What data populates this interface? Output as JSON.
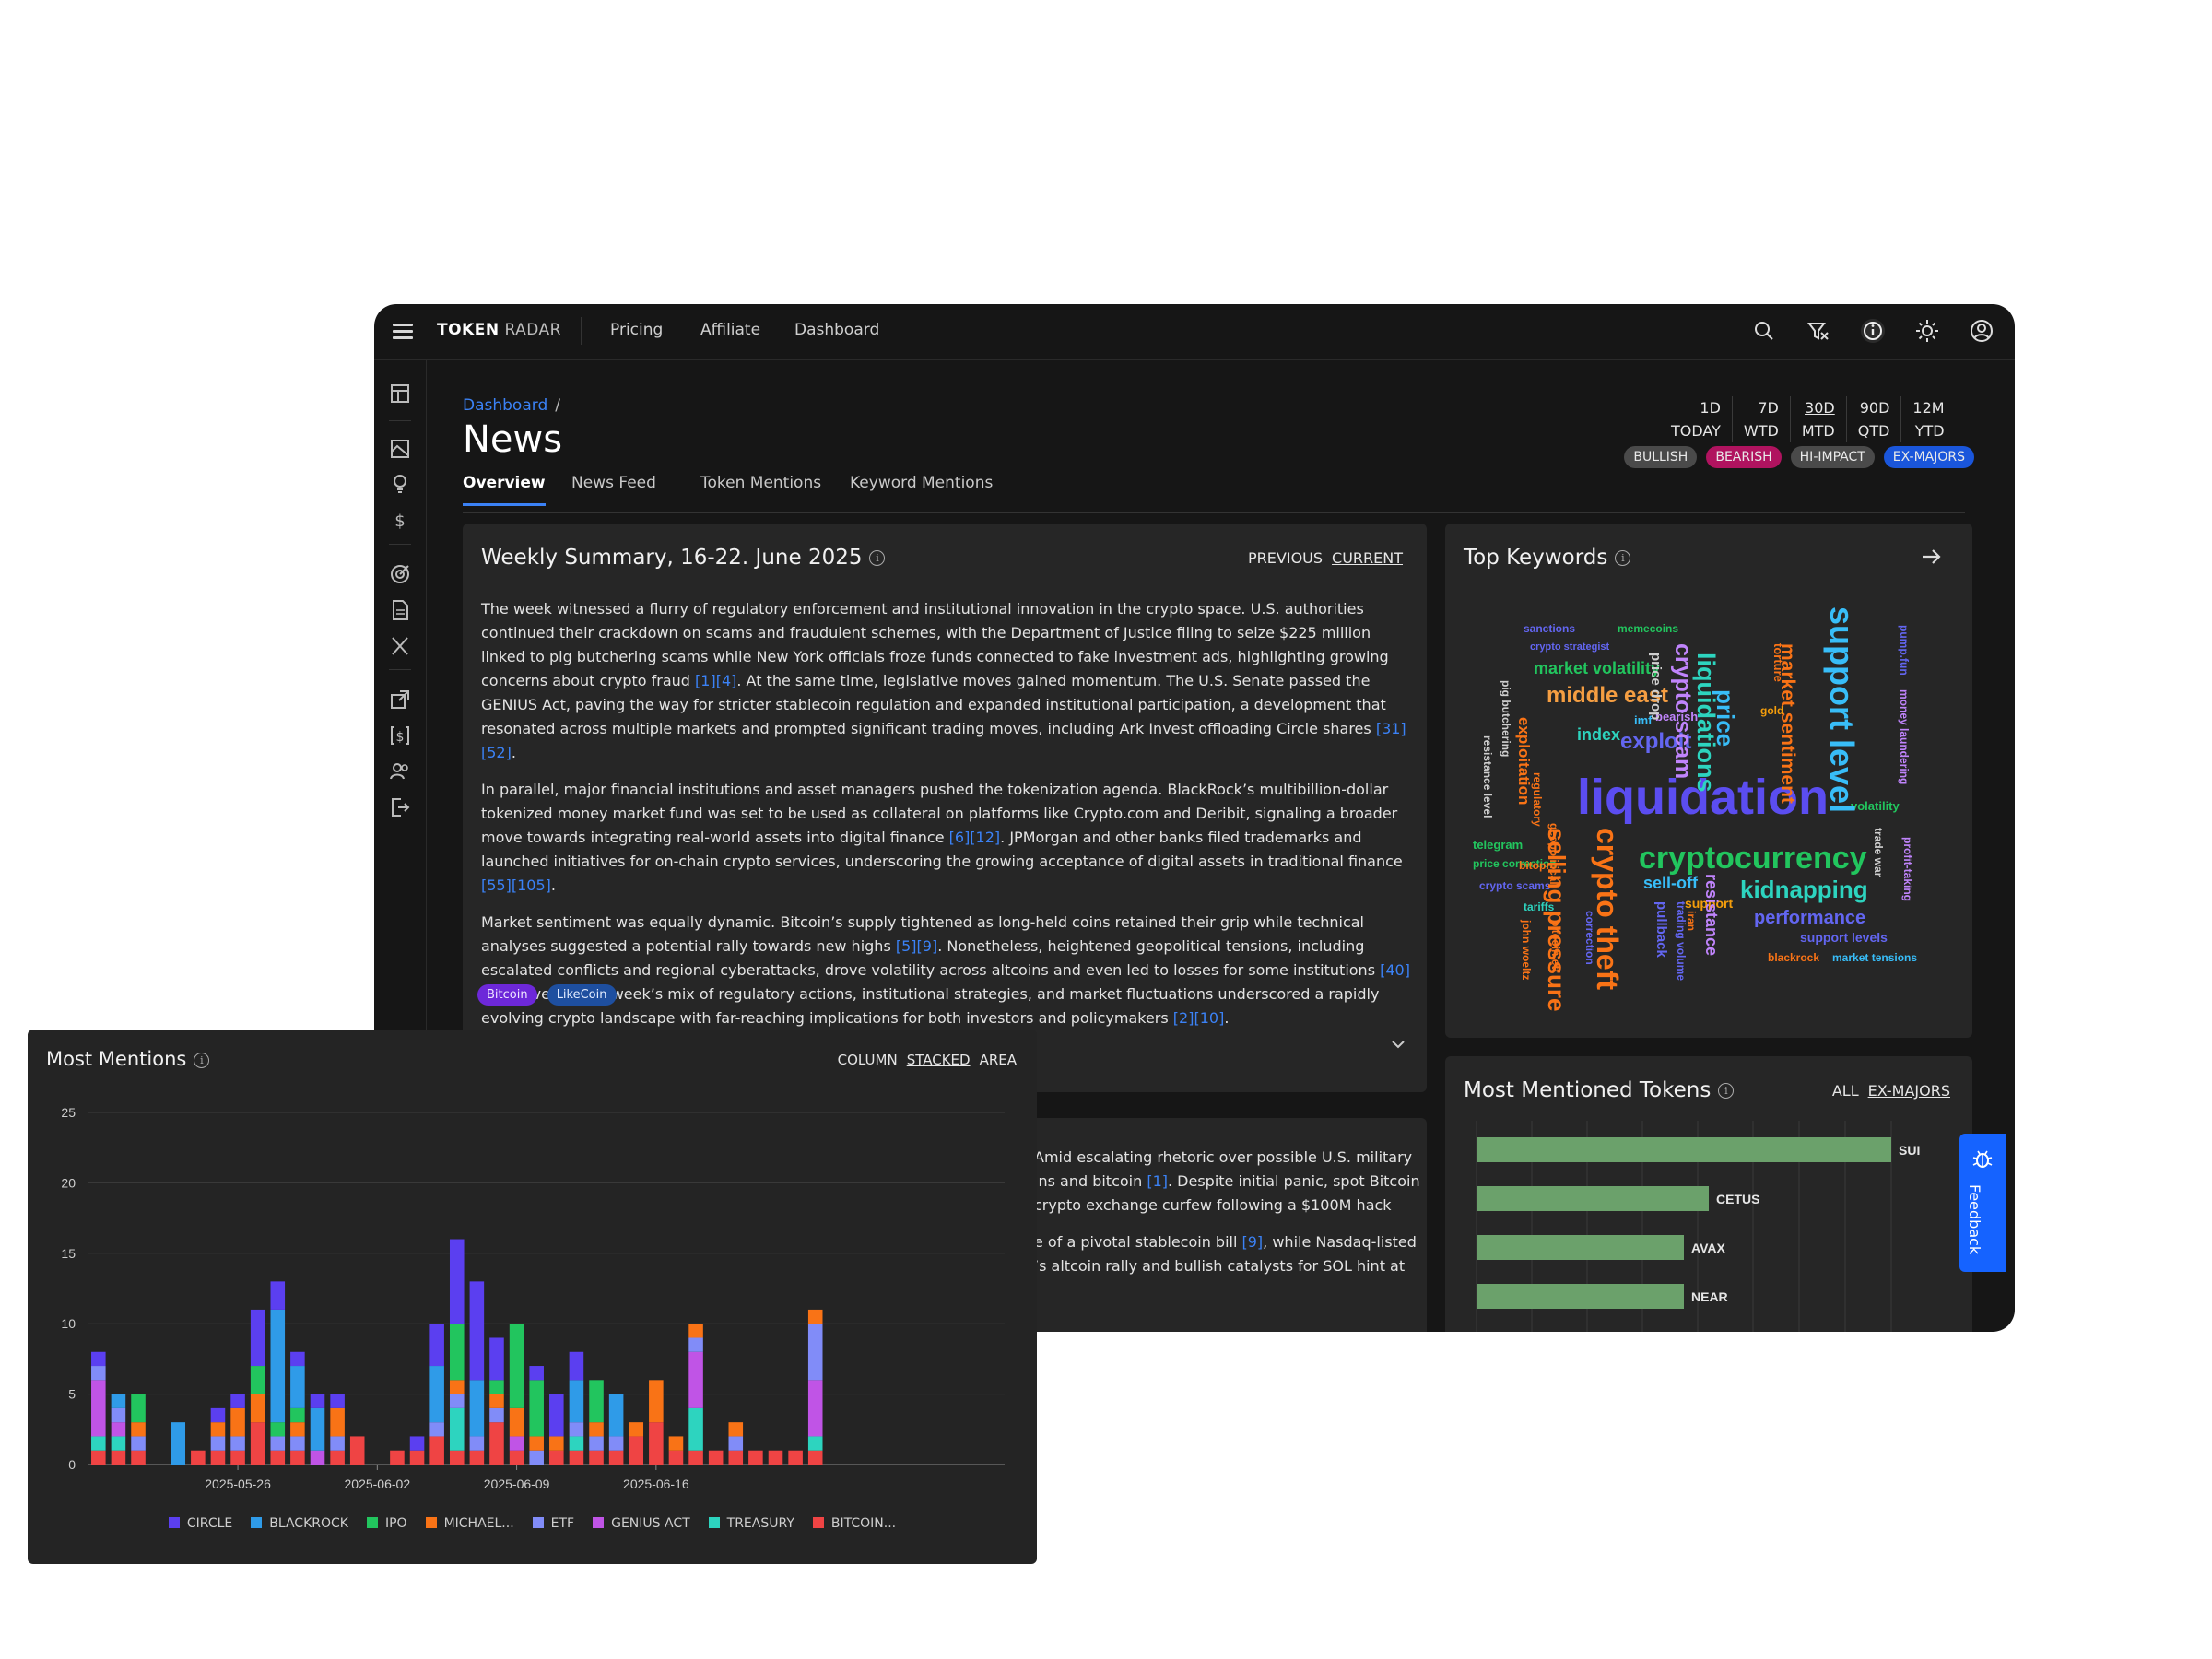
{
  "topbar": {
    "brand_bold": "TOKEN",
    "brand_light": "RADAR",
    "nav": [
      "Pricing",
      "Affiliate",
      "Dashboard"
    ]
  },
  "breadcrumb": {
    "parent": "Dashboard",
    "sep": "/"
  },
  "page_title": "News",
  "periods": [
    {
      "top": "1D",
      "bottom": "TODAY",
      "selected": false
    },
    {
      "top": "7D",
      "bottom": "WTD",
      "selected": false
    },
    {
      "top": "30D",
      "bottom": "MTD",
      "selected": true
    },
    {
      "top": "90D",
      "bottom": "QTD",
      "selected": false
    },
    {
      "top": "12M",
      "bottom": "YTD",
      "selected": false
    }
  ],
  "filter_chips": [
    {
      "label": "BULLISH",
      "color": "#4a4a4a"
    },
    {
      "label": "BEARISH",
      "color": "#b0135f"
    },
    {
      "label": "HI-IMPACT",
      "color": "#4a4a4a"
    },
    {
      "label": "EX-MAJORS",
      "color": "#1a56db"
    }
  ],
  "tabs": [
    "Overview",
    "News Feed",
    "Token Mentions",
    "Keyword Mentions"
  ],
  "summary": {
    "title": "Weekly Summary, 16-22. June 2025",
    "prev": "PREVIOUS",
    "current": "CURRENT",
    "p1a": "The week witnessed a flurry of regulatory enforcement and institutional innovation in the crypto space. U.S. authorities continued their crackdown on scams and fraudulent schemes, with the Department of Justice filing to seize $225 million linked to pig butchering scams while New York officials froze funds connected to fake investment ads, highlighting growing concerns about crypto fraud ",
    "p1c1": "[1][4]",
    "p1b": ". At the same time, legislative moves gained momentum. The U.S. Senate passed the GENIUS Act, paving the way for stricter stablecoin regulation and expanded institutional participation, a development that resonated across multiple markets and prompted significant trading moves, including Ark Invest offloading Circle shares ",
    "p1c2": "[31][52]",
    "p1d": ".",
    "p2a": "In parallel, major financial institutions and asset managers pushed the tokenization agenda. BlackRock’s multibillion-dollar tokenized money market fund was set to be used as collateral on platforms like Crypto.com and Deribit, signaling a broader move towards integrating real-world assets into digital finance ",
    "p2c1": "[6][12]",
    "p2b": ". JPMorgan and other banks filed trademarks and launched initiatives for on-chain crypto services, underscoring the growing acceptance of digital assets in traditional finance ",
    "p2c2": "[55][105]",
    "p2d": ".",
    "p3a": "Market sentiment was equally dynamic. Bitcoin’s supply tightened as long-held coins retained their grip while technical analyses suggested a potential rally towards new highs ",
    "p3c1": "[5][9]",
    "p3b": ". Nonetheless, heightened geopolitical tensions, including escalated conflicts and regional cyberattacks, drove volatility across altcoins and even led to losses for some institutions ",
    "p3c2": "[40][45]",
    "p3c": ". Overall, the week’s mix of regulatory actions, institutional strategies, and market fluctuations underscored a rapidly evolving crypto landscape with far-reaching implications for both investors and policymakers ",
    "p3c3": "[2][10]",
    "p3d": ".",
    "tags": [
      {
        "label": "Bitcoin",
        "color": "#6d28d9"
      },
      {
        "label": "LikeCoin",
        "color": "#1e4fa0"
      }
    ]
  },
  "second_panel": {
    "line1a": "Amid escalating rhetoric over possible U.S. military",
    "line2a": "ins and bitcoin ",
    "line2c": "[1]",
    "line2b": ". Despite initial panic, spot Bitcoin",
    "line3a": "crypto exchange curfew following a $100M hack",
    "line4a": "e of a pivotal stablecoin bill ",
    "line4c": "[9]",
    "line4b": ", while Nasdaq-listed",
    "line5a": "’s altcoin rally and bullish catalysts for SOL hint at"
  },
  "keywords": {
    "title": "Top Keywords",
    "words": [
      {
        "t": "sanctions",
        "c": "#6366f1"
      },
      {
        "t": "memecoins",
        "c": "#22c55e"
      },
      {
        "t": "crypto strategist",
        "c": "#6366f1"
      },
      {
        "t": "market volatility",
        "c": "#22c55e"
      },
      {
        "t": "middle east",
        "c": "#f59e42"
      },
      {
        "t": "imf",
        "c": "#38bdf8"
      },
      {
        "t": "index",
        "c": "#2dd4bf"
      },
      {
        "t": "exploit",
        "c": "#6366f1"
      },
      {
        "t": "bearish",
        "c": "#c084fc"
      },
      {
        "t": "gold",
        "c": "#f59e0b"
      },
      {
        "t": "liquidation",
        "c": "#5b4df0"
      },
      {
        "t": "cryptocurrency",
        "c": "#22c55e"
      },
      {
        "t": "telegram",
        "c": "#22c55e"
      },
      {
        "t": "price correction",
        "c": "#22c55e"
      },
      {
        "t": "bitopro",
        "c": "#f97316"
      },
      {
        "t": "crypto scams",
        "c": "#6366f1"
      },
      {
        "t": "tariffs",
        "c": "#2dd4bf"
      },
      {
        "t": "sell-off",
        "c": "#38bdf8"
      },
      {
        "t": "support",
        "c": "#f59e0b"
      },
      {
        "t": "kidnapping",
        "c": "#2dd4bf"
      },
      {
        "t": "performance",
        "c": "#6366f1"
      },
      {
        "t": "support levels",
        "c": "#6366f1"
      },
      {
        "t": "blackrock",
        "c": "#f97316"
      },
      {
        "t": "market tensions",
        "c": "#38bdf8"
      },
      {
        "t": "volatility",
        "c": "#22c55e"
      },
      {
        "t": "crypto scam",
        "c": "#c084fc"
      },
      {
        "t": "price drop",
        "c": "#cfcfcf"
      },
      {
        "t": "liquidations",
        "c": "#2dd4bf"
      },
      {
        "t": "price",
        "c": "#38bdf8"
      },
      {
        "t": "torture",
        "c": "#f97316"
      },
      {
        "t": "market sentiment",
        "c": "#f97316"
      },
      {
        "t": "support level",
        "c": "#38bdf8"
      },
      {
        "t": "pump.fun",
        "c": "#6366f1"
      },
      {
        "t": "money laundering",
        "c": "#c084fc"
      },
      {
        "t": "pig butchering",
        "c": "#cfcfcf"
      },
      {
        "t": "resistance level",
        "c": "#cfcfcf"
      },
      {
        "t": "exploitation",
        "c": "#f97316"
      },
      {
        "t": "regulatory",
        "c": "#f97316"
      },
      {
        "t": "geopolitical",
        "c": "#f97316"
      },
      {
        "t": "selling pressure",
        "c": "#f97316"
      },
      {
        "t": "crypto theft",
        "c": "#f97316"
      },
      {
        "t": "correction",
        "c": "#6366f1"
      },
      {
        "t": "pullback",
        "c": "#6366f1"
      },
      {
        "t": "trading volume",
        "c": "#6366f1"
      },
      {
        "t": "iran",
        "c": "#f97316"
      },
      {
        "t": "resistance",
        "c": "#c084fc"
      },
      {
        "t": "bitcoin etf",
        "c": "#f97316"
      },
      {
        "t": "john woeltz",
        "c": "#f97316"
      },
      {
        "t": "trade war",
        "c": "#cfcfcf"
      },
      {
        "t": "profit-taking",
        "c": "#c084fc"
      }
    ]
  },
  "tokens": {
    "title": "Most Mentioned Tokens",
    "all": "ALL",
    "exmajors": "EX-MAJORS",
    "items": [
      {
        "name": "SUI",
        "value": 1.0
      },
      {
        "name": "CETUS",
        "value": 0.56
      },
      {
        "name": "AVAX",
        "value": 0.5
      },
      {
        "name": "NEAR",
        "value": 0.5
      }
    ]
  },
  "feedback": "Feedback",
  "mentions": {
    "title": "Most Mentions",
    "modes": [
      "COLUMN",
      "STACKED",
      "AREA"
    ],
    "active_mode": "STACKED"
  },
  "chart_data": {
    "type": "bar",
    "stacked": true,
    "title": "Most Mentions",
    "ylim": [
      0,
      25
    ],
    "yticks": [
      0,
      5,
      10,
      15,
      20,
      25
    ],
    "x_tick_labels": [
      {
        "index": 7,
        "label": "2025-05-26"
      },
      {
        "index": 14,
        "label": "2025-06-02"
      },
      {
        "index": 21,
        "label": "2025-06-09"
      },
      {
        "index": 28,
        "label": "2025-06-16"
      }
    ],
    "grid": true,
    "legend": "bottom",
    "series": [
      {
        "name": "BITCOIN...",
        "color": "#ef4444",
        "values": [
          1,
          1,
          1,
          0,
          0,
          1,
          1,
          1,
          3,
          1,
          1,
          0,
          1,
          2,
          0,
          1,
          1,
          2,
          1,
          1,
          3,
          1,
          0,
          1,
          1,
          1,
          1,
          2,
          3,
          1,
          1,
          1,
          1,
          1,
          1,
          1,
          1,
          0,
          0,
          0,
          0,
          0,
          0,
          0,
          0,
          0
        ]
      },
      {
        "name": "TREASURY",
        "color": "#2dd4bf",
        "values": [
          1,
          1,
          0,
          0,
          0,
          0,
          0,
          0,
          0,
          0,
          0,
          0,
          0,
          0,
          0,
          0,
          0,
          0,
          3,
          0,
          0,
          0,
          0,
          0,
          1,
          0,
          0,
          0,
          0,
          0,
          3,
          0,
          0,
          0,
          0,
          0,
          1,
          0,
          0,
          0,
          0,
          0,
          0,
          0,
          0,
          0
        ]
      },
      {
        "name": "GENIUS ACT",
        "color": "#c054e6",
        "values": [
          4,
          1,
          0,
          0,
          0,
          0,
          0,
          0,
          0,
          0,
          0,
          1,
          0,
          0,
          0,
          0,
          0,
          0,
          0,
          0,
          0,
          1,
          0,
          0,
          0,
          0,
          0,
          0,
          0,
          0,
          4,
          0,
          0,
          0,
          0,
          0,
          4,
          0,
          0,
          0,
          0,
          0,
          0,
          0,
          0,
          0
        ]
      },
      {
        "name": "ETF",
        "color": "#818cf8",
        "values": [
          1,
          1,
          1,
          0,
          0,
          0,
          1,
          1,
          0,
          1,
          1,
          0,
          1,
          0,
          0,
          0,
          0,
          1,
          1,
          1,
          1,
          0,
          1,
          0,
          1,
          1,
          1,
          0,
          0,
          0,
          1,
          0,
          1,
          0,
          0,
          0,
          4,
          0,
          0,
          0,
          0,
          0,
          0,
          0,
          0,
          0
        ]
      },
      {
        "name": "MICHAEL...",
        "color": "#f97316",
        "values": [
          0,
          0,
          1,
          0,
          0,
          0,
          1,
          2,
          2,
          0,
          1,
          0,
          2,
          0,
          0,
          0,
          0,
          0,
          1,
          0,
          1,
          2,
          1,
          1,
          0,
          1,
          0,
          1,
          3,
          1,
          1,
          0,
          1,
          0,
          0,
          0,
          1,
          0,
          0,
          0,
          0,
          0,
          0,
          0,
          0,
          0
        ]
      },
      {
        "name": "IPO",
        "color": "#22c55e",
        "values": [
          0,
          0,
          2,
          0,
          0,
          0,
          0,
          0,
          2,
          1,
          1,
          0,
          0,
          0,
          0,
          0,
          0,
          0,
          4,
          0,
          1,
          6,
          4,
          0,
          0,
          3,
          0,
          0,
          0,
          0,
          0,
          0,
          0,
          0,
          0,
          0,
          0,
          0,
          0,
          0,
          0,
          0,
          0,
          0,
          0,
          0
        ]
      },
      {
        "name": "BLACKROCK",
        "color": "#2f9be8",
        "values": [
          0,
          1,
          0,
          0,
          3,
          0,
          0,
          0,
          0,
          8,
          3,
          3,
          0,
          0,
          0,
          0,
          0,
          4,
          0,
          4,
          0,
          0,
          0,
          0,
          3,
          0,
          3,
          0,
          0,
          0,
          0,
          0,
          0,
          0,
          0,
          0,
          0,
          0,
          0,
          0,
          0,
          0,
          0,
          0,
          0,
          0
        ]
      },
      {
        "name": "CIRCLE",
        "color": "#5b3ff0",
        "values": [
          1,
          0,
          0,
          0,
          0,
          0,
          1,
          1,
          4,
          2,
          1,
          1,
          1,
          0,
          0,
          0,
          1,
          3,
          6,
          7,
          3,
          0,
          1,
          3,
          2,
          0,
          0,
          0,
          0,
          0,
          0,
          0,
          0,
          0,
          0,
          0,
          0,
          0,
          0,
          0,
          0,
          0,
          0,
          0,
          0,
          0
        ]
      }
    ]
  }
}
